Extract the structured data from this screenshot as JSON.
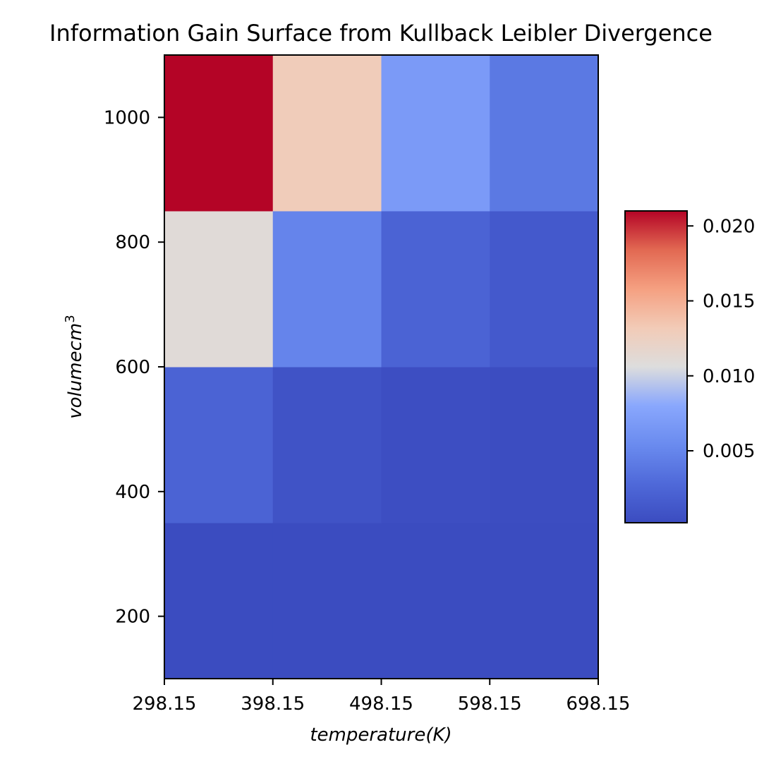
{
  "chart_data": {
    "type": "heatmap",
    "title": "Information Gain Surface from Kullback Leibler Divergence",
    "xlabel": "temperature(K)",
    "ylabel": "volumecm",
    "ylabel_superscript": "3",
    "x_ticks": [
      "298.15",
      "398.15",
      "498.15",
      "598.15",
      "698.15"
    ],
    "y_ticks": [
      "200",
      "400",
      "600",
      "800",
      "1000"
    ],
    "xlim": [
      298.15,
      698.15
    ],
    "ylim": [
      100,
      1100
    ],
    "x_edges": [
      298.15,
      398.15,
      498.15,
      598.15,
      698.15
    ],
    "y_edges": [
      100,
      350,
      600,
      850,
      1100
    ],
    "values": [
      [
        0.0002,
        0.0002,
        0.0002,
        0.0002
      ],
      [
        0.0023,
        0.0008,
        0.0004,
        0.0003
      ],
      [
        0.011,
        0.0049,
        0.0023,
        0.0014
      ],
      [
        0.021,
        0.013,
        0.0068,
        0.004
      ]
    ],
    "colormap": "coolwarm",
    "colorbar": {
      "min": 0.0002,
      "max": 0.021,
      "ticks": [
        0.005,
        0.01,
        0.015,
        0.02
      ],
      "tick_labels": [
        "0.005",
        "0.010",
        "0.015",
        "0.020"
      ]
    },
    "grid": false
  }
}
